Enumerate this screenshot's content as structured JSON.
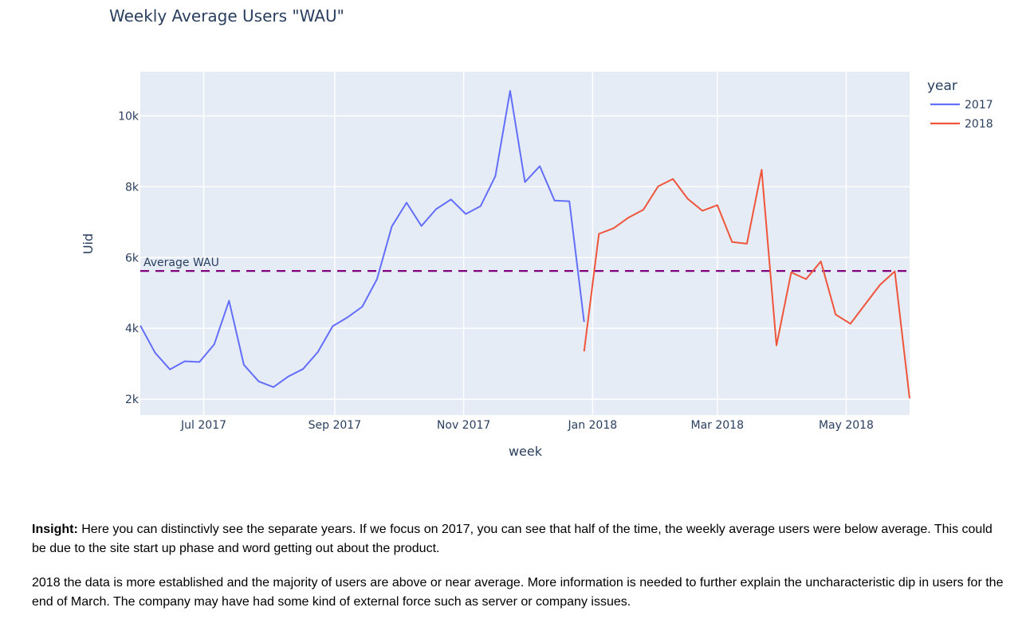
{
  "chart_data": {
    "type": "line",
    "title": "Weekly Average Users \"WAU\"",
    "xlabel": "week",
    "ylabel": "Uid",
    "x_tick_labels": [
      "Jul 2017",
      "Sep 2017",
      "Nov 2017",
      "Jan 2018",
      "Mar 2018",
      "May 2018"
    ],
    "x_tick_dates": [
      "2017-07-01",
      "2017-09-01",
      "2017-11-01",
      "2018-01-01",
      "2018-03-01",
      "2018-05-01"
    ],
    "xlim": [
      "2017-06-01",
      "2018-05-31"
    ],
    "y_tick_labels": [
      "2k",
      "4k",
      "6k",
      "8k",
      "10k"
    ],
    "y_tick_values": [
      2000,
      4000,
      6000,
      8000,
      10000
    ],
    "ylim": [
      1550,
      11250
    ],
    "grid": true,
    "legend_title": "year",
    "legend_position": "top-right",
    "series": [
      {
        "name": "2017",
        "color": "#636efa",
        "points": [
          [
            "2017-06-01",
            4080
          ],
          [
            "2017-06-08",
            3310
          ],
          [
            "2017-06-15",
            2840
          ],
          [
            "2017-06-22",
            3070
          ],
          [
            "2017-06-29",
            3050
          ],
          [
            "2017-07-06",
            3550
          ],
          [
            "2017-07-13",
            4780
          ],
          [
            "2017-07-20",
            2970
          ],
          [
            "2017-07-27",
            2500
          ],
          [
            "2017-08-03",
            2340
          ],
          [
            "2017-08-10",
            2640
          ],
          [
            "2017-08-17",
            2850
          ],
          [
            "2017-08-24",
            3330
          ],
          [
            "2017-08-31",
            4060
          ],
          [
            "2017-09-07",
            4310
          ],
          [
            "2017-09-14",
            4610
          ],
          [
            "2017-09-21",
            5390
          ],
          [
            "2017-09-28",
            6880
          ],
          [
            "2017-10-05",
            7550
          ],
          [
            "2017-10-12",
            6890
          ],
          [
            "2017-10-19",
            7370
          ],
          [
            "2017-10-26",
            7640
          ],
          [
            "2017-11-02",
            7230
          ],
          [
            "2017-11-09",
            7450
          ],
          [
            "2017-11-16",
            8300
          ],
          [
            "2017-11-23",
            10710
          ],
          [
            "2017-11-30",
            8130
          ],
          [
            "2017-12-07",
            8580
          ],
          [
            "2017-12-14",
            7610
          ],
          [
            "2017-12-21",
            7590
          ],
          [
            "2017-12-28",
            4180
          ]
        ]
      },
      {
        "name": "2018",
        "color": "#ef553b",
        "points": [
          [
            "2017-12-28",
            3350
          ],
          [
            "2018-01-04",
            6670
          ],
          [
            "2018-01-11",
            6830
          ],
          [
            "2018-01-18",
            7130
          ],
          [
            "2018-01-25",
            7350
          ],
          [
            "2018-02-01",
            8010
          ],
          [
            "2018-02-08",
            8220
          ],
          [
            "2018-02-15",
            7660
          ],
          [
            "2018-02-22",
            7320
          ],
          [
            "2018-03-01",
            7480
          ],
          [
            "2018-03-08",
            6440
          ],
          [
            "2018-03-15",
            6390
          ],
          [
            "2018-03-22",
            8480
          ],
          [
            "2018-03-29",
            3520
          ],
          [
            "2018-04-05",
            5580
          ],
          [
            "2018-04-12",
            5390
          ],
          [
            "2018-04-19",
            5890
          ],
          [
            "2018-04-26",
            4390
          ],
          [
            "2018-05-03",
            4130
          ],
          [
            "2018-05-10",
            4680
          ],
          [
            "2018-05-17",
            5230
          ],
          [
            "2018-05-24",
            5610
          ],
          [
            "2018-05-31",
            2020
          ]
        ]
      }
    ],
    "reference_line": {
      "label": "Average WAU",
      "value": 5620,
      "color": "#800080",
      "style": "dashed"
    }
  },
  "insights": [
    {
      "lead": "Insight:",
      "text": " Here you can distinctivly see the separate years. If we focus on 2017, you can see that half of the time, the weekly average users were below average. This could be due to the site start up phase and word getting out about the product."
    },
    {
      "lead": "",
      "text": "2018 the data is more established and the majority of users are above or near average. More information is needed to further explain the uncharacteristic dip in users for the end of March. The company may have had some kind of external force such as server or company issues."
    }
  ]
}
